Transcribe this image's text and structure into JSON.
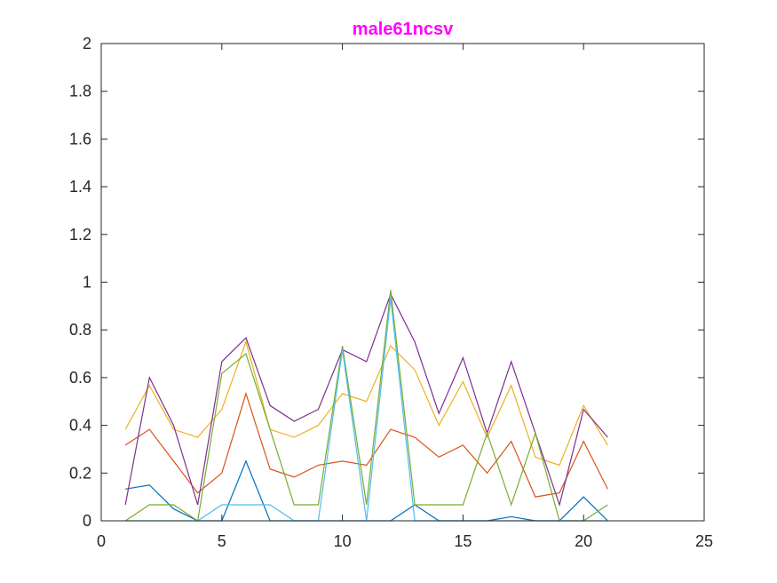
{
  "chart_data": {
    "type": "line",
    "title": "male61ncsv",
    "title_color": "#FF00FF",
    "xlabel": "",
    "ylabel": "",
    "xlim": [
      0,
      25
    ],
    "ylim": [
      0,
      2
    ],
    "x_ticks": [
      0,
      5,
      10,
      15,
      20,
      25
    ],
    "x_tick_labels": [
      "0",
      "5",
      "10",
      "15",
      "20",
      "25"
    ],
    "y_ticks": [
      0,
      0.2,
      0.4,
      0.6,
      0.8,
      1,
      1.2,
      1.4,
      1.6,
      1.8,
      2
    ],
    "y_tick_labels": [
      "0",
      "0.2",
      "0.4",
      "0.6",
      "0.8",
      "1",
      "1.2",
      "1.4",
      "1.6",
      "1.8",
      "2"
    ],
    "grid": false,
    "legend": "none",
    "x": [
      1,
      2,
      3,
      4,
      5,
      6,
      7,
      8,
      9,
      10,
      11,
      12,
      13,
      14,
      15,
      16,
      17,
      18,
      19,
      20,
      21
    ],
    "series": [
      {
        "color": "#0072BD",
        "values": [
          0.133,
          0.15,
          0.05,
          0.0,
          0.0,
          0.25,
          0.0,
          0.0,
          0.0,
          0.0,
          0.0,
          0.0,
          0.067,
          0.0,
          0.0,
          0.0,
          0.017,
          0.0,
          0.0,
          0.1,
          0.0
        ]
      },
      {
        "color": "#D95319",
        "values": [
          0.317,
          0.383,
          0.25,
          0.117,
          0.2,
          0.533,
          0.217,
          0.183,
          0.233,
          0.25,
          0.233,
          0.383,
          0.35,
          0.267,
          0.317,
          0.2,
          0.333,
          0.1,
          0.117,
          0.333,
          0.133
        ]
      },
      {
        "color": "#EDB120",
        "values": [
          0.383,
          0.567,
          0.383,
          0.35,
          0.467,
          0.75,
          0.383,
          0.35,
          0.4,
          0.533,
          0.5,
          0.733,
          0.633,
          0.4,
          0.583,
          0.35,
          0.567,
          0.267,
          0.233,
          0.483,
          0.317
        ]
      },
      {
        "color": "#7E2F8E",
        "values": [
          0.067,
          0.6,
          0.4,
          0.067,
          0.667,
          0.767,
          0.483,
          0.417,
          0.467,
          0.717,
          0.667,
          0.95,
          0.75,
          0.45,
          0.683,
          0.367,
          0.667,
          0.367,
          0.067,
          0.467,
          0.35
        ]
      },
      {
        "color": "#77AC30",
        "values": [
          0.0,
          0.067,
          0.067,
          0.0,
          0.617,
          0.7,
          0.383,
          0.067,
          0.067,
          0.733,
          0.067,
          0.967,
          0.067,
          0.067,
          0.067,
          0.367,
          0.067,
          0.367,
          0.0,
          0.0,
          0.067
        ]
      },
      {
        "color": "#4DBEEE",
        "values": [
          0.0,
          0.0,
          0.0,
          0.0,
          0.067,
          0.067,
          0.067,
          0.0,
          0.0,
          0.717,
          0.0,
          0.933,
          0.0,
          0.0,
          0.0,
          0.0,
          0.0,
          0.0,
          0.0,
          0.0,
          0.0
        ]
      }
    ]
  }
}
